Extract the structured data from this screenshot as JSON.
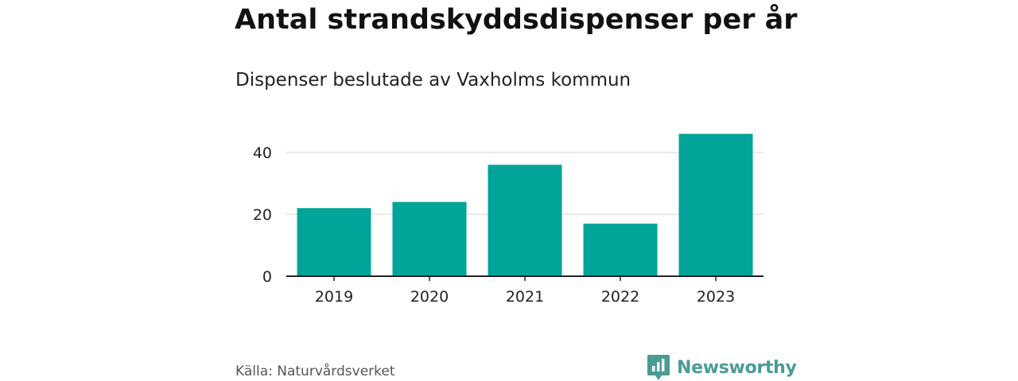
{
  "header": {
    "title": "Antal strandskyddsdispenser per år",
    "subtitle": "Dispenser beslutade av Vaxholms kommun"
  },
  "footer": {
    "source": "Källa: Naturvårdsverket",
    "brand_name": "Newsworthy",
    "brand_color": "#4a9c94"
  },
  "chart_data": {
    "type": "bar",
    "title": "Antal strandskyddsdispenser per år",
    "subtitle": "Dispenser beslutade av Vaxholms kommun",
    "categories": [
      "2019",
      "2020",
      "2021",
      "2022",
      "2023"
    ],
    "values": [
      22,
      24,
      36,
      17,
      46
    ],
    "ylim": [
      0,
      50
    ],
    "yticks": [
      0,
      20,
      40
    ],
    "xlabel": "",
    "ylabel": "",
    "grid": true,
    "legend": "none",
    "bar_color": "#00a499",
    "grid_color": "#dddddd",
    "axis_color": "#222222"
  }
}
